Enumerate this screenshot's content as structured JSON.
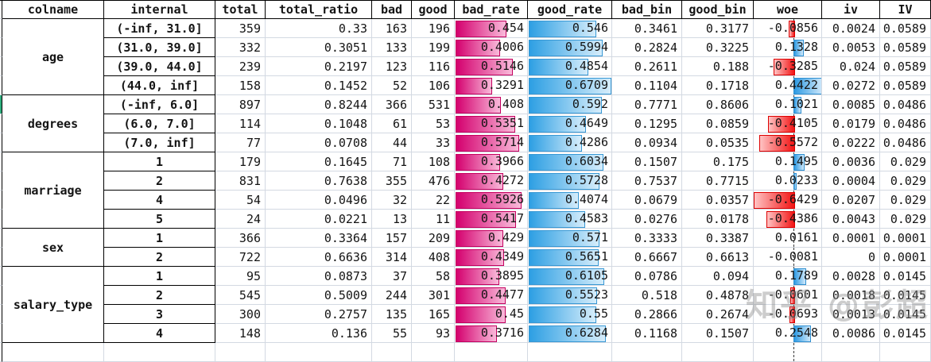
{
  "columns": [
    {
      "key": "colname",
      "label": "colname"
    },
    {
      "key": "internal",
      "label": "internal"
    },
    {
      "key": "total",
      "label": "total"
    },
    {
      "key": "total_ratio",
      "label": "total_ratio"
    },
    {
      "key": "bad",
      "label": "bad"
    },
    {
      "key": "good",
      "label": "good"
    },
    {
      "key": "bad_rate",
      "label": "bad_rate"
    },
    {
      "key": "good_rate",
      "label": "good_rate"
    },
    {
      "key": "bad_bin",
      "label": "bad_bin"
    },
    {
      "key": "good_bin",
      "label": "good_bin"
    },
    {
      "key": "woe",
      "label": "woe"
    },
    {
      "key": "iv",
      "label": "iv"
    },
    {
      "key": "IV",
      "label": "IV"
    }
  ],
  "groups": [
    {
      "colname": "age",
      "edge_marker": false,
      "rows": [
        {
          "internal": "(-inf, 31.0]",
          "total": "359",
          "total_ratio": "0.33",
          "bad": "163",
          "good": "196",
          "bad_rate": "0.454",
          "good_rate": "0.546",
          "bad_bin": "0.3461",
          "good_bin": "0.3177",
          "woe": "-0.0856",
          "iv": "0.0024",
          "IV": "0.0589"
        },
        {
          "internal": "(31.0, 39.0]",
          "total": "332",
          "total_ratio": "0.3051",
          "bad": "133",
          "good": "199",
          "bad_rate": "0.4006",
          "good_rate": "0.5994",
          "bad_bin": "0.2824",
          "good_bin": "0.3225",
          "woe": "0.1328",
          "iv": "0.0053",
          "IV": "0.0589"
        },
        {
          "internal": "(39.0, 44.0]",
          "total": "239",
          "total_ratio": "0.2197",
          "bad": "123",
          "good": "116",
          "bad_rate": "0.5146",
          "good_rate": "0.4854",
          "bad_bin": "0.2611",
          "good_bin": "0.188",
          "woe": "-0.3285",
          "iv": "0.024",
          "IV": "0.0589"
        },
        {
          "internal": "(44.0, inf]",
          "total": "158",
          "total_ratio": "0.1452",
          "bad": "52",
          "good": "106",
          "bad_rate": "0.3291",
          "good_rate": "0.6709",
          "bad_bin": "0.1104",
          "good_bin": "0.1718",
          "woe": "0.4422",
          "iv": "0.0272",
          "IV": "0.0589"
        }
      ]
    },
    {
      "colname": "degrees",
      "edge_marker": true,
      "rows": [
        {
          "internal": "(-inf, 6.0]",
          "total": "897",
          "total_ratio": "0.8244",
          "bad": "366",
          "good": "531",
          "bad_rate": "0.408",
          "good_rate": "0.592",
          "bad_bin": "0.7771",
          "good_bin": "0.8606",
          "woe": "0.1021",
          "iv": "0.0085",
          "IV": "0.0486"
        },
        {
          "internal": "(6.0, 7.0]",
          "total": "114",
          "total_ratio": "0.1048",
          "bad": "61",
          "good": "53",
          "bad_rate": "0.5351",
          "good_rate": "0.4649",
          "bad_bin": "0.1295",
          "good_bin": "0.0859",
          "woe": "-0.4105",
          "iv": "0.0179",
          "IV": "0.0486"
        },
        {
          "internal": "(7.0, inf]",
          "total": "77",
          "total_ratio": "0.0708",
          "bad": "44",
          "good": "33",
          "bad_rate": "0.5714",
          "good_rate": "0.4286",
          "bad_bin": "0.0934",
          "good_bin": "0.0535",
          "woe": "-0.5572",
          "iv": "0.0222",
          "IV": "0.0486"
        }
      ]
    },
    {
      "colname": "marriage",
      "edge_marker": false,
      "rows": [
        {
          "internal": "1",
          "total": "179",
          "total_ratio": "0.1645",
          "bad": "71",
          "good": "108",
          "bad_rate": "0.3966",
          "good_rate": "0.6034",
          "bad_bin": "0.1507",
          "good_bin": "0.175",
          "woe": "0.1495",
          "iv": "0.0036",
          "IV": "0.029"
        },
        {
          "internal": "2",
          "total": "831",
          "total_ratio": "0.7638",
          "bad": "355",
          "good": "476",
          "bad_rate": "0.4272",
          "good_rate": "0.5728",
          "bad_bin": "0.7537",
          "good_bin": "0.7715",
          "woe": "0.0233",
          "iv": "0.0004",
          "IV": "0.029"
        },
        {
          "internal": "4",
          "total": "54",
          "total_ratio": "0.0496",
          "bad": "32",
          "good": "22",
          "bad_rate": "0.5926",
          "good_rate": "0.4074",
          "bad_bin": "0.0679",
          "good_bin": "0.0357",
          "woe": "-0.6429",
          "iv": "0.0207",
          "IV": "0.029"
        },
        {
          "internal": "5",
          "total": "24",
          "total_ratio": "0.0221",
          "bad": "13",
          "good": "11",
          "bad_rate": "0.5417",
          "good_rate": "0.4583",
          "bad_bin": "0.0276",
          "good_bin": "0.0178",
          "woe": "-0.4386",
          "iv": "0.0043",
          "IV": "0.029"
        }
      ]
    },
    {
      "colname": "sex",
      "edge_marker": false,
      "rows": [
        {
          "internal": "1",
          "total": "366",
          "total_ratio": "0.3364",
          "bad": "157",
          "good": "209",
          "bad_rate": "0.429",
          "good_rate": "0.571",
          "bad_bin": "0.3333",
          "good_bin": "0.3387",
          "woe": "0.0161",
          "iv": "0.0001",
          "IV": "0.0001"
        },
        {
          "internal": "2",
          "total": "722",
          "total_ratio": "0.6636",
          "bad": "314",
          "good": "408",
          "bad_rate": "0.4349",
          "good_rate": "0.5651",
          "bad_bin": "0.6667",
          "good_bin": "0.6613",
          "woe": "-0.0081",
          "iv": "0",
          "IV": "0.0001"
        }
      ]
    },
    {
      "colname": "salary_type",
      "edge_marker": false,
      "rows": [
        {
          "internal": "1",
          "total": "95",
          "total_ratio": "0.0873",
          "bad": "37",
          "good": "58",
          "bad_rate": "0.3895",
          "good_rate": "0.6105",
          "bad_bin": "0.0786",
          "good_bin": "0.094",
          "woe": "0.1789",
          "iv": "0.0028",
          "IV": "0.0145"
        },
        {
          "internal": "2",
          "total": "545",
          "total_ratio": "0.5009",
          "bad": "244",
          "good": "301",
          "bad_rate": "0.4477",
          "good_rate": "0.5523",
          "bad_bin": "0.518",
          "good_bin": "0.4878",
          "woe": "-0.0601",
          "iv": "0.0018",
          "IV": "0.0145"
        },
        {
          "internal": "3",
          "total": "300",
          "total_ratio": "0.2757",
          "bad": "135",
          "good": "165",
          "bad_rate": "0.45",
          "good_rate": "0.55",
          "bad_bin": "0.2866",
          "good_bin": "0.2674",
          "woe": "-0.0693",
          "iv": "0.0013",
          "IV": "0.0145"
        },
        {
          "internal": "4",
          "total": "148",
          "total_ratio": "0.136",
          "bad": "55",
          "good": "93",
          "bad_rate": "0.3716",
          "good_rate": "0.6284",
          "bad_bin": "0.1168",
          "good_bin": "0.1507",
          "woe": "0.2548",
          "iv": "0.0086",
          "IV": "0.0145"
        }
      ]
    }
  ],
  "bars": {
    "bad_rate": {
      "kind": "positive",
      "max": 0.5926,
      "full_pct": 90,
      "fill_start": "#d4006e",
      "fill_end": "#f9bada",
      "border": "#c4005f"
    },
    "good_rate": {
      "kind": "positive",
      "max": 0.6709,
      "full_pct": 98,
      "fill_start": "#2d9fe3",
      "fill_end": "#d6edfb",
      "border": "#3898d4"
    },
    "woe": {
      "kind": "centered",
      "min": -0.6429,
      "max": 0.4422,
      "axis_pct": 59.25,
      "min_render_pct": 1.8,
      "pos_fill_start": "#2d9ae3",
      "pos_fill_end": "#cfe8fa",
      "pos_border": "#2f8fd0",
      "neg_fill_start": "#f21414",
      "neg_fill_end": "#ffc3c3",
      "neg_border": "#dd0000"
    }
  },
  "edge_marker_color": "#2fae7d",
  "watermark": {
    "text": "知乎 @彭超"
  }
}
